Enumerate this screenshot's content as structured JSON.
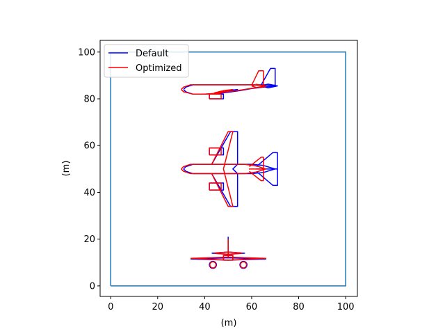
{
  "chart_data": {
    "type": "line",
    "title": "",
    "xlabel": "(m)",
    "ylabel": "(m)",
    "xlim": [
      -4.5,
      105
    ],
    "ylim": [
      -4.5,
      105
    ],
    "xticks": [
      0,
      20,
      40,
      60,
      80,
      100
    ],
    "yticks": [
      0,
      20,
      40,
      60,
      80,
      100
    ],
    "xtick_labels": [
      "0",
      "20",
      "40",
      "60",
      "80",
      "100"
    ],
    "ytick_labels": [
      "0",
      "20",
      "40",
      "60",
      "80",
      "100"
    ],
    "grid": false,
    "legend": {
      "placement": "top-left",
      "entries": [
        {
          "name": "Default",
          "color": "#0000ff"
        },
        {
          "name": "Optimized",
          "color": "#ff0000"
        }
      ]
    },
    "colors": {
      "boundary": "#1f77b4",
      "default": "#0000ff",
      "optimized": "#ff0000"
    },
    "boundary": {
      "x": [
        0,
        100,
        100,
        0,
        0
      ],
      "y": [
        0,
        0,
        100,
        100,
        0
      ]
    },
    "series": [
      {
        "name": "Default",
        "color": "#0000ff",
        "side_view": {
          "fuselage": {
            "x": [
              31,
              32,
              35,
              42,
              50,
              58,
              62,
              65,
              68,
              70,
              68,
              65,
              60,
              55,
              50,
              45,
              40,
              35,
              32,
              31
            ],
            "y": [
              84,
              85,
              86,
              86,
              86,
              86,
              86,
              86,
              85.8,
              85.5,
              85.3,
              85,
              84.4,
              83.5,
              82.8,
              82.2,
              82,
              82,
              83,
              84
            ]
          },
          "fin": {
            "x": [
              64,
              68,
              70,
              70,
              66
            ],
            "y": [
              85.8,
              93,
              93,
              85.8,
              85.8
            ]
          },
          "stabilizer": {
            "x": [
              64,
              67,
              71,
              67,
              64
            ],
            "y": [
              85.5,
              86.3,
              85.5,
              84.7,
              85.5
            ]
          },
          "wing": {
            "x": [
              45,
              50,
              54,
              50,
              45
            ],
            "y": [
              82.5,
              83.5,
              84,
              83,
              82.5
            ]
          },
          "engine": {
            "x": [
              42,
              48,
              48,
              42,
              42
            ],
            "y": [
              80,
              80,
              82,
              82,
              80
            ]
          }
        },
        "top_view": {
          "fuselage": {
            "x": [
              31,
              32,
              35,
              42,
              60,
              65,
              70,
              65,
              60,
              42,
              35,
              32,
              31
            ],
            "y": [
              50,
              51,
              52,
              52,
              52,
              51.5,
              50,
              48.5,
              48,
              48,
              48,
              49,
              50
            ]
          },
          "wing": {
            "x": [
              43,
              51,
              54,
              54,
              52,
              52,
              54,
              54,
              51,
              43
            ],
            "y": [
              52,
              66,
              66,
              52,
              50,
              50,
              48,
              34,
              34,
              48
            ]
          },
          "stabilizer": {
            "x": [
              62,
              69,
              71,
              71,
              62,
              71,
              71,
              69,
              62
            ],
            "y": [
              51,
              57,
              57,
              50,
              50,
              50,
              43,
              43,
              49
            ]
          },
          "engine_upper": {
            "x": [
              42,
              48,
              48,
              42,
              42
            ],
            "y": [
              56,
              56,
              59,
              59,
              56
            ]
          },
          "engine_lower": {
            "x": [
              42,
              48,
              48,
              42,
              42
            ],
            "y": [
              41,
              41,
              44,
              44,
              41
            ]
          }
        },
        "front_view": {
          "fin": {
            "x": [
              50,
              50
            ],
            "y": [
              12,
              21
            ]
          },
          "wing": {
            "x": [
              34,
              50,
              66,
              50,
              34
            ],
            "y": [
              11.5,
              11,
              11.5,
              12,
              11.5
            ]
          },
          "stabilizer": {
            "x": [
              43,
              50,
              57,
              50,
              43
            ],
            "y": [
              14,
              13.5,
              14,
              14.5,
              14
            ]
          },
          "body": {
            "x": [
              48,
              52,
              52,
              48,
              48
            ],
            "y": [
              11,
              11,
              13,
              13,
              11
            ]
          },
          "engine_left": {
            "cx": 43.5,
            "cy": 9,
            "r": 1.5
          },
          "engine_right": {
            "cx": 56.5,
            "cy": 9,
            "r": 1.5
          }
        }
      },
      {
        "name": "Optimized",
        "color": "#ff0000",
        "side_view": {
          "fuselage": {
            "x": [
              30,
              31,
              34,
              42,
              50,
              57,
              60,
              63,
              65,
              66,
              64,
              60,
              55,
              50,
              45,
              40,
              35,
              31,
              30
            ],
            "y": [
              84,
              85,
              86,
              86,
              86,
              86,
              86,
              85.8,
              85.5,
              85.3,
              85,
              84.5,
              83.7,
              83,
              82.4,
              82,
              82,
              83,
              84
            ]
          },
          "fin": {
            "x": [
              60,
              63,
              65,
              65,
              62
            ],
            "y": [
              85.8,
              92,
              92,
              85.8,
              85.8
            ]
          },
          "stabilizer": {
            "x": [
              60,
              62,
              66,
              62,
              60
            ],
            "y": [
              85.5,
              86.2,
              85.5,
              84.8,
              85.5
            ]
          },
          "wing": {
            "x": [
              44,
              48,
              52,
              48,
              44
            ],
            "y": [
              82.5,
              83.5,
              84,
              83,
              82.5
            ]
          },
          "engine": {
            "x": [
              42,
              47,
              47,
              42,
              42
            ],
            "y": [
              80,
              80,
              82,
              82,
              80
            ]
          }
        },
        "top_view": {
          "fuselage": {
            "x": [
              30,
              31,
              34,
              42,
              57,
              62,
              66,
              62,
              57,
              42,
              34,
              31,
              30
            ],
            "y": [
              50,
              51,
              52,
              52,
              52,
              51.3,
              50,
              48.7,
              48,
              48,
              48,
              49,
              50
            ]
          },
          "wing": {
            "x": [
              43,
              50,
              52,
              48,
              48,
              52,
              50,
              43
            ],
            "y": [
              52,
              66,
              66,
              50,
              50,
              34,
              34,
              48
            ]
          },
          "stabilizer": {
            "x": [
              59,
              64,
              65,
              65,
              59,
              65,
              65,
              64,
              59
            ],
            "y": [
              51,
              55,
              55,
              50,
              50,
              50,
              45,
              45,
              49
            ]
          },
          "engine_upper": {
            "x": [
              42,
              47,
              47,
              42,
              42
            ],
            "y": [
              56,
              56,
              59,
              59,
              56
            ]
          },
          "engine_lower": {
            "x": [
              42,
              47,
              47,
              42,
              42
            ],
            "y": [
              41,
              41,
              44,
              44,
              41
            ]
          }
        },
        "front_view": {
          "fin": {
            "x": [
              50,
              50
            ],
            "y": [
              12,
              20
            ]
          },
          "wing": {
            "x": [
              34,
              50,
              66,
              50,
              34
            ],
            "y": [
              11.8,
              11,
              11.8,
              12.3,
              11.8
            ]
          },
          "stabilizer": {
            "x": [
              44,
              50,
              56,
              50,
              44
            ],
            "y": [
              14,
              13.5,
              14,
              14.5,
              14
            ]
          },
          "body": {
            "x": [
              48,
              52,
              52,
              48,
              48
            ],
            "y": [
              11,
              11,
              13,
              13,
              11
            ]
          },
          "engine_left": {
            "cx": 43.5,
            "cy": 9,
            "r": 1.3
          },
          "engine_right": {
            "cx": 56.5,
            "cy": 9,
            "r": 1.3
          }
        }
      }
    ]
  }
}
